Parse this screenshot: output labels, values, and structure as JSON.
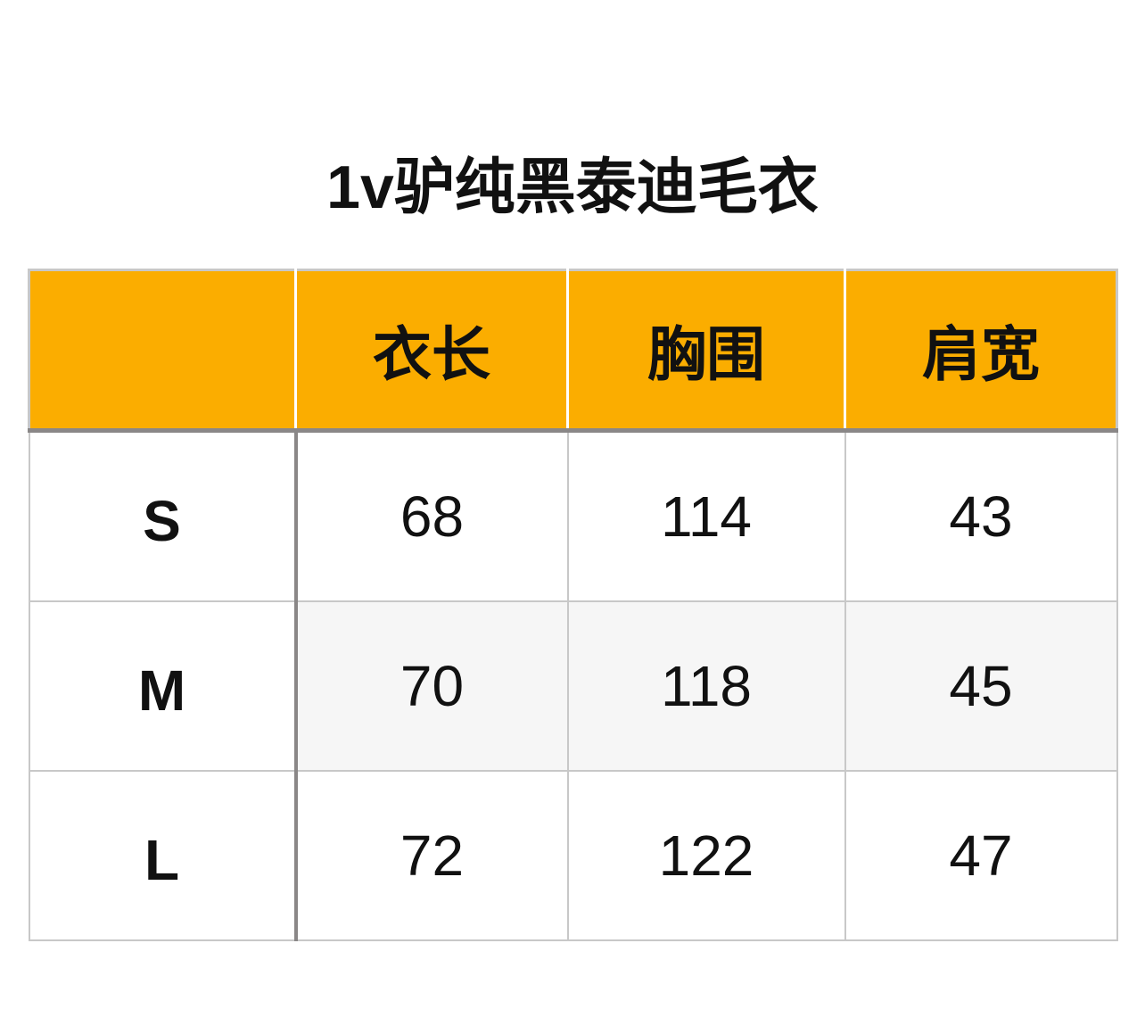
{
  "title": "1v驴纯黑泰迪毛衣",
  "colors": {
    "header": "#fbad00",
    "border": "#c8c8c8",
    "divider": "#8a8787"
  },
  "table": {
    "headers": [
      "",
      "衣长",
      "胸围",
      "肩宽"
    ],
    "rows": [
      {
        "size": "S",
        "values": [
          "68",
          "114",
          "43"
        ]
      },
      {
        "size": "M",
        "values": [
          "70",
          "118",
          "45"
        ]
      },
      {
        "size": "L",
        "values": [
          "72",
          "122",
          "47"
        ]
      }
    ]
  }
}
